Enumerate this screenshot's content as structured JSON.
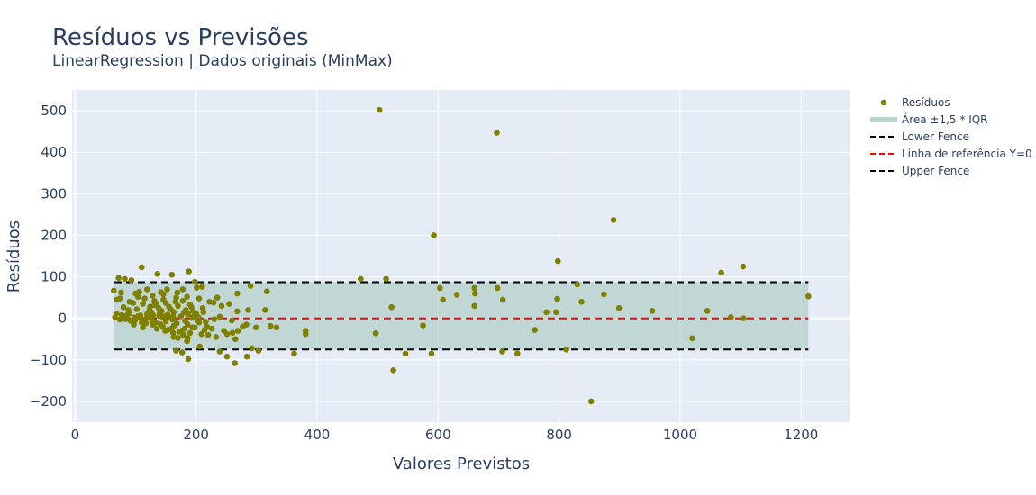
{
  "colors": {
    "plot_bg": "#e5ecf6",
    "grid": "#ffffff",
    "marker": "#808000",
    "band": "#a8c9c0",
    "fence": "#000000",
    "zero_line": "#ff0000",
    "text": "#2a3f5f"
  },
  "chart_data": {
    "type": "scatter",
    "title": "Resíduos vs Previsões",
    "subtitle": "LinearRegression | Dados originais (MinMax)",
    "xlabel": "Valores Previstos",
    "ylabel": "Resíduos",
    "xlim": [
      -5,
      1280
    ],
    "ylim": [
      -250,
      550
    ],
    "x_ticks": [
      0,
      200,
      400,
      600,
      800,
      1000,
      1200
    ],
    "y_ticks": [
      -200,
      -100,
      0,
      100,
      200,
      300,
      400,
      500
    ],
    "grid": true,
    "legend_position": "right",
    "fences": {
      "lower": -75,
      "upper": 87,
      "x_range": [
        65,
        1212
      ]
    },
    "zero_line_x_range": [
      65,
      1212
    ],
    "legend": [
      {
        "label": "Resíduos",
        "kind": "marker"
      },
      {
        "label": "Área ±1,5 * IQR",
        "kind": "band"
      },
      {
        "label": "Lower Fence",
        "kind": "dash-black"
      },
      {
        "label": "Linha de referência Y=0",
        "kind": "dash-red"
      },
      {
        "label": "Upper Fence",
        "kind": "dash-black"
      }
    ],
    "series": [
      {
        "name": "Resíduos",
        "points": [
          [
            503,
            502
          ],
          [
            697,
            447
          ],
          [
            890,
            237
          ],
          [
            593,
            200
          ],
          [
            798,
            138
          ],
          [
            1104,
            125
          ],
          [
            110,
            123
          ],
          [
            188,
            113
          ],
          [
            1068,
            110
          ],
          [
            136,
            107
          ],
          [
            160,
            105
          ],
          [
            472,
            95
          ],
          [
            514,
            95
          ],
          [
            82,
            95
          ],
          [
            93,
            92
          ],
          [
            72,
            97
          ],
          [
            198,
            88
          ],
          [
            290,
            78
          ],
          [
            830,
            82
          ],
          [
            603,
            73
          ],
          [
            660,
            73
          ],
          [
            698,
            73
          ],
          [
            119,
            70
          ],
          [
            152,
            70
          ],
          [
            178,
            70
          ],
          [
            210,
            76
          ],
          [
            317,
            65
          ],
          [
            631,
            57
          ],
          [
            661,
            60
          ],
          [
            874,
            58
          ],
          [
            1212,
            53
          ],
          [
            1105,
            0
          ],
          [
            1084,
            3
          ],
          [
            1045,
            18
          ],
          [
            954,
            18
          ],
          [
            899,
            25
          ],
          [
            837,
            40
          ],
          [
            797,
            47
          ],
          [
            795,
            15
          ],
          [
            779,
            15
          ],
          [
            707,
            45
          ],
          [
            660,
            30
          ],
          [
            608,
            45
          ],
          [
            523,
            27
          ],
          [
            235,
            50
          ],
          [
            268,
            60
          ],
          [
            286,
            20
          ],
          [
            314,
            20
          ],
          [
            268,
            17
          ],
          [
            64,
            67
          ],
          [
            76,
            62
          ],
          [
            100,
            60
          ],
          [
            128,
            55
          ],
          [
            146,
            58
          ],
          [
            167,
            50
          ],
          [
            185,
            52
          ],
          [
            205,
            48
          ],
          [
            222,
            40
          ],
          [
            69,
            45
          ],
          [
            90,
            40
          ],
          [
            112,
            35
          ],
          [
            131,
            32
          ],
          [
            150,
            37
          ],
          [
            170,
            30
          ],
          [
            190,
            33
          ],
          [
            211,
            25
          ],
          [
            242,
            30
          ],
          [
            255,
            35
          ],
          [
            80,
            27
          ],
          [
            102,
            22
          ],
          [
            123,
            20
          ],
          [
            143,
            18
          ],
          [
            163,
            15
          ],
          [
            183,
            20
          ],
          [
            200,
            12
          ],
          [
            68,
            12
          ],
          [
            86,
            8
          ],
          [
            104,
            5
          ],
          [
            121,
            3
          ],
          [
            139,
            6
          ],
          [
            157,
            2
          ],
          [
            175,
            5
          ],
          [
            193,
            1
          ],
          [
            66,
            3
          ],
          [
            84,
            -2
          ],
          [
            99,
            -5
          ],
          [
            115,
            -8
          ],
          [
            133,
            -10
          ],
          [
            150,
            -7
          ],
          [
            168,
            -12
          ],
          [
            186,
            -15
          ],
          [
            205,
            -10
          ],
          [
            74,
            -3
          ],
          [
            92,
            -6
          ],
          [
            110,
            -10
          ],
          [
            128,
            -15
          ],
          [
            145,
            -20
          ],
          [
            163,
            -18
          ],
          [
            181,
            -25
          ],
          [
            198,
            -22
          ],
          [
            218,
            -20
          ],
          [
            135,
            -25
          ],
          [
            153,
            -28
          ],
          [
            172,
            -32
          ],
          [
            190,
            -35
          ],
          [
            209,
            -38
          ],
          [
            226,
            -25
          ],
          [
            246,
            -30
          ],
          [
            260,
            -35
          ],
          [
            117,
            -12
          ],
          [
            127,
            -5
          ],
          [
            108,
            2
          ],
          [
            119,
            10
          ],
          [
            126,
            15
          ],
          [
            138,
            25
          ],
          [
            155,
            28
          ],
          [
            166,
            40
          ],
          [
            178,
            42
          ],
          [
            187,
            10
          ],
          [
            195,
            18
          ],
          [
            203,
            -5
          ],
          [
            214,
            -28
          ],
          [
            233,
            -45
          ],
          [
            251,
            -38
          ],
          [
            269,
            -30
          ],
          [
            277,
            -20
          ],
          [
            299,
            -22
          ],
          [
            323,
            -18
          ],
          [
            333,
            -22
          ],
          [
            381,
            -30
          ],
          [
            381,
            -38
          ],
          [
            575,
            -17
          ],
          [
            760,
            -28
          ],
          [
            497,
            -36
          ],
          [
            179,
            -40
          ],
          [
            170,
            -47
          ],
          [
            163,
            -45
          ],
          [
            186,
            -47
          ],
          [
            206,
            -68
          ],
          [
            167,
            -78
          ],
          [
            177,
            -82
          ],
          [
            265,
            -50
          ],
          [
            239,
            -80
          ],
          [
            251,
            -92
          ],
          [
            264,
            -108
          ],
          [
            284,
            -92
          ],
          [
            292,
            -72
          ],
          [
            303,
            -78
          ],
          [
            187,
            -98
          ],
          [
            362,
            -85
          ],
          [
            546,
            -85
          ],
          [
            589,
            -85
          ],
          [
            706,
            -80
          ],
          [
            731,
            -85
          ],
          [
            812,
            -75
          ],
          [
            1020,
            -48
          ],
          [
            526,
            -125
          ],
          [
            853,
            -200
          ],
          [
            140,
            12
          ],
          [
            148,
            5
          ],
          [
            158,
            22
          ],
          [
            161,
            -3
          ],
          [
            182,
            -6
          ],
          [
            192,
            28
          ],
          [
            115,
            48
          ],
          [
            104,
            52
          ],
          [
            96,
            37
          ],
          [
            88,
            20
          ],
          [
            77,
            8
          ],
          [
            131,
            42
          ],
          [
            142,
            63
          ],
          [
            169,
            62
          ],
          [
            197,
            5
          ],
          [
            220,
            -40
          ],
          [
            212,
            15
          ],
          [
            176,
            -30
          ],
          [
            141,
            -14
          ],
          [
            124,
            28
          ],
          [
            97,
            -15
          ],
          [
            112,
            -22
          ],
          [
            159,
            -25
          ],
          [
            134,
            36
          ],
          [
            106,
            64
          ],
          [
            74,
            48
          ],
          [
            201,
            74
          ],
          [
            229,
            38
          ],
          [
            185,
            -55
          ],
          [
            230,
            -2
          ],
          [
            162,
            -35
          ],
          [
            149,
            -30
          ],
          [
            194,
            -22
          ],
          [
            118,
            0
          ],
          [
            108,
            7
          ],
          [
            98,
            2
          ],
          [
            90,
            12
          ],
          [
            129,
            8
          ],
          [
            146,
            1
          ],
          [
            153,
            9
          ],
          [
            162,
            4
          ],
          [
            180,
            14
          ],
          [
            204,
            3
          ],
          [
            216,
            -8
          ],
          [
            239,
            4
          ],
          [
            259,
            -5
          ],
          [
            283,
            -15
          ],
          [
            146,
            45
          ]
        ]
      }
    ]
  }
}
